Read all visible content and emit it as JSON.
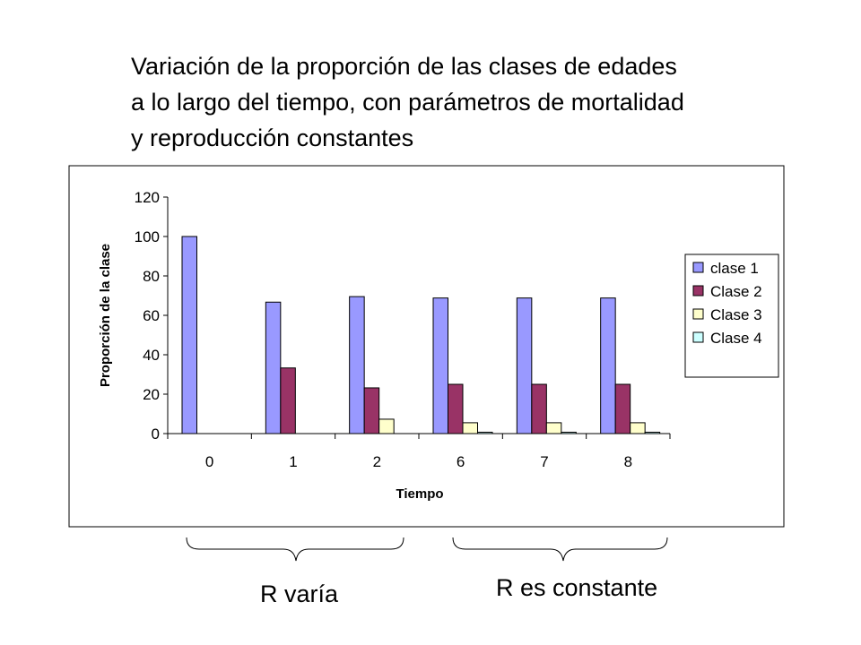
{
  "slide": {
    "title": "Variación de la proporción de las clases de edades\na lo largo del tiempo, con parámetros de mortalidad\ny reproducción constantes",
    "brace_left_label": "R varía",
    "brace_right_label": "R es constante"
  },
  "chart_data": {
    "type": "bar",
    "title": "",
    "xlabel": "Tiempo",
    "ylabel": "Proporción de la clase",
    "ylim": [
      0,
      120
    ],
    "yticks": [
      0,
      20,
      40,
      60,
      80,
      100,
      120
    ],
    "categories": [
      "0",
      "1",
      "2",
      "6",
      "7",
      "8"
    ],
    "grid": false,
    "legend_position": "right",
    "series": [
      {
        "name": "clase 1",
        "color": "#9999ff",
        "values": [
          100,
          66.7,
          69.5,
          68.8,
          68.8,
          68.8
        ]
      },
      {
        "name": "Clase 2",
        "color": "#993366",
        "values": [
          0,
          33.3,
          23.2,
          25.0,
          25.0,
          25.0
        ]
      },
      {
        "name": "Clase 3",
        "color": "#ffffcc",
        "values": [
          0,
          0,
          7.3,
          5.5,
          5.5,
          5.5
        ]
      },
      {
        "name": "Clase 4",
        "color": "#ccffff",
        "values": [
          0,
          0,
          0,
          0.7,
          0.7,
          0.7
        ]
      }
    ]
  }
}
